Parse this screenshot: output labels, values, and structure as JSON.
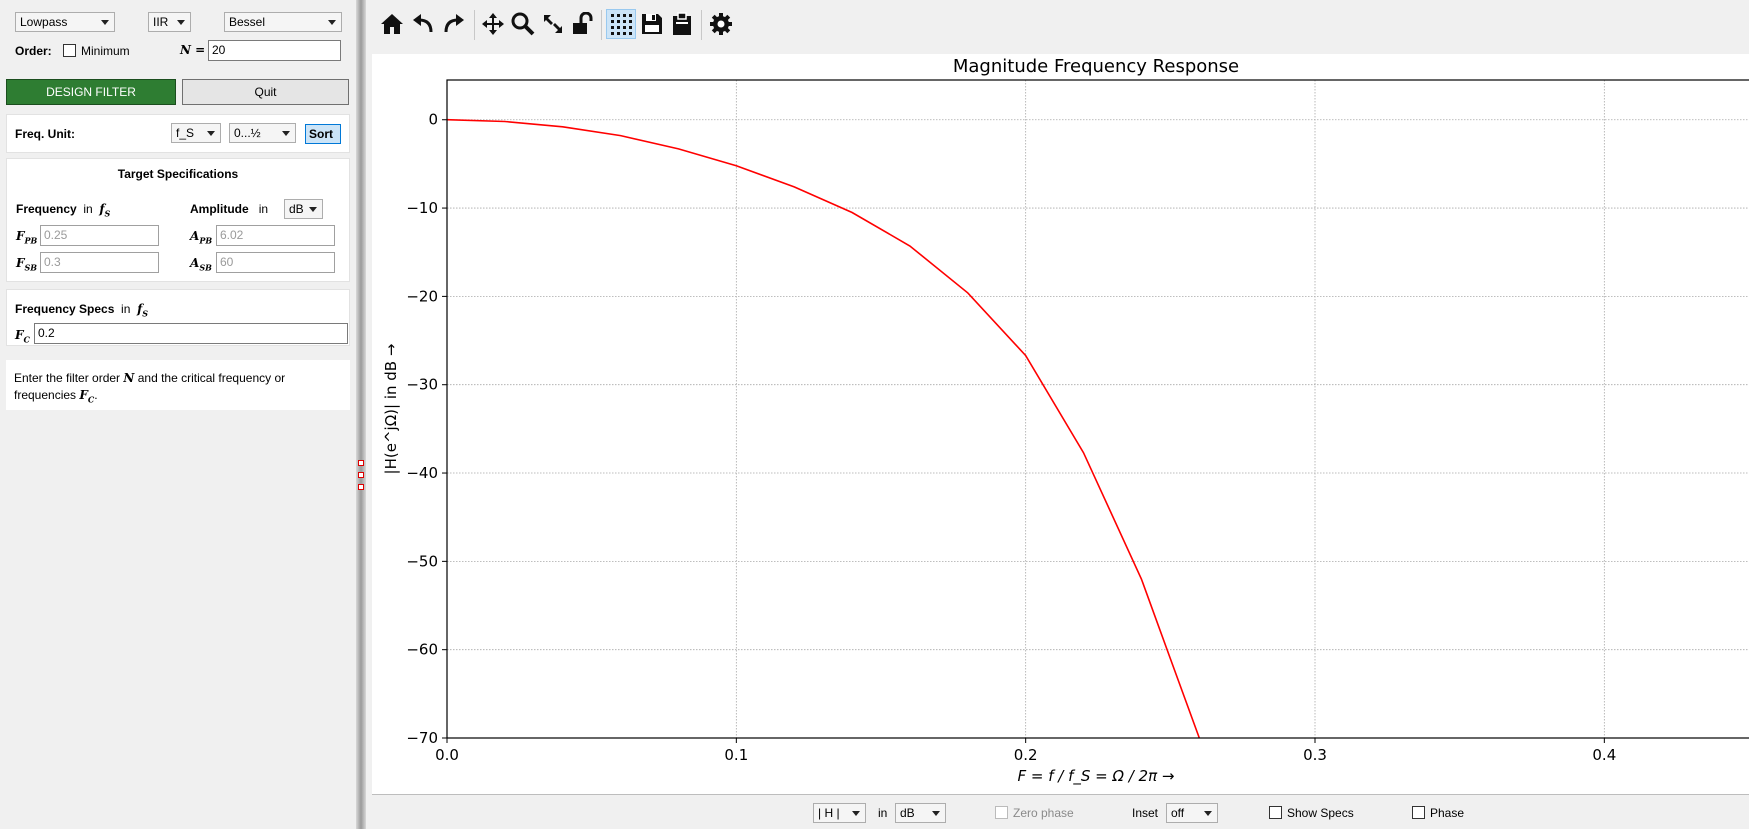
{
  "filter_type": {
    "response": "Lowpass",
    "class": "IIR",
    "design": "Bessel"
  },
  "order": {
    "label": "Order:",
    "minimum_label": "Minimum",
    "n_label": "N =",
    "n_value": "20"
  },
  "buttons": {
    "design": "DESIGN FILTER",
    "quit": "Quit"
  },
  "freq_unit": {
    "label": "Freq. Unit:",
    "unit": "f_S",
    "range": "0...½",
    "sort": "Sort"
  },
  "target_specs": {
    "title": "Target Specifications",
    "frequency_label": "Frequency",
    "in": "in",
    "amplitude_label": "Amplitude",
    "amplitude_unit": "dB",
    "f_pb_value": "0.25",
    "f_sb_value": "0.3",
    "a_pb_value": "6.02",
    "a_sb_value": "60"
  },
  "freq_specs": {
    "title": "Frequency Specs",
    "in": "in",
    "f_c_value": "0.2"
  },
  "info": {
    "line1_a": "Enter the filter order",
    "line1_b": "and the critical frequency or",
    "line2": "frequencies"
  },
  "toolbar": {
    "icons": [
      "home-icon",
      "undo-icon",
      "redo-icon",
      "pan-icon",
      "zoom-icon",
      "autoscale-icon",
      "unlock-icon",
      "grid-icon",
      "save-icon",
      "clipboard-icon",
      "settings-icon"
    ],
    "active": "grid-icon"
  },
  "chart_data": {
    "type": "line",
    "title": "Magnitude Frequency Response",
    "xlabel": "F = f / f_S = Ω / 2π →",
    "ylabel": "|H(e^jΩ)| in dB →",
    "xlim": [
      0,
      0.45
    ],
    "ylim": [
      -70,
      4.5
    ],
    "xticks": [
      0.0,
      0.1,
      0.2,
      0.3,
      0.4
    ],
    "xtick_labels": [
      "0.0",
      "0.1",
      "0.2",
      "0.3",
      "0.4"
    ],
    "yticks": [
      0,
      -10,
      -20,
      -30,
      -40,
      -50,
      -60,
      -70
    ],
    "ytick_labels": [
      "0",
      "−10",
      "−20",
      "−30",
      "−40",
      "−50",
      "−60",
      "−70"
    ],
    "grid": true,
    "series": [
      {
        "color": "#ff0000",
        "x": [
          0,
          0.02,
          0.04,
          0.06,
          0.08,
          0.1,
          0.12,
          0.14,
          0.16,
          0.18,
          0.2,
          0.22,
          0.24,
          0.25,
          0.26
        ],
        "y": [
          0,
          -0.2,
          -0.8,
          -1.8,
          -3.3,
          -5.2,
          -7.6,
          -10.5,
          -14.3,
          -19.6,
          -26.7,
          -37.7,
          -52,
          -61,
          -70
        ]
      }
    ]
  },
  "bottom": {
    "mag_select": "| H |",
    "in": "in",
    "unit_select": "dB",
    "zero_phase": "Zero phase",
    "inset_label": "Inset",
    "inset_select": "off",
    "show_specs": "Show Specs",
    "phase": "Phase"
  }
}
